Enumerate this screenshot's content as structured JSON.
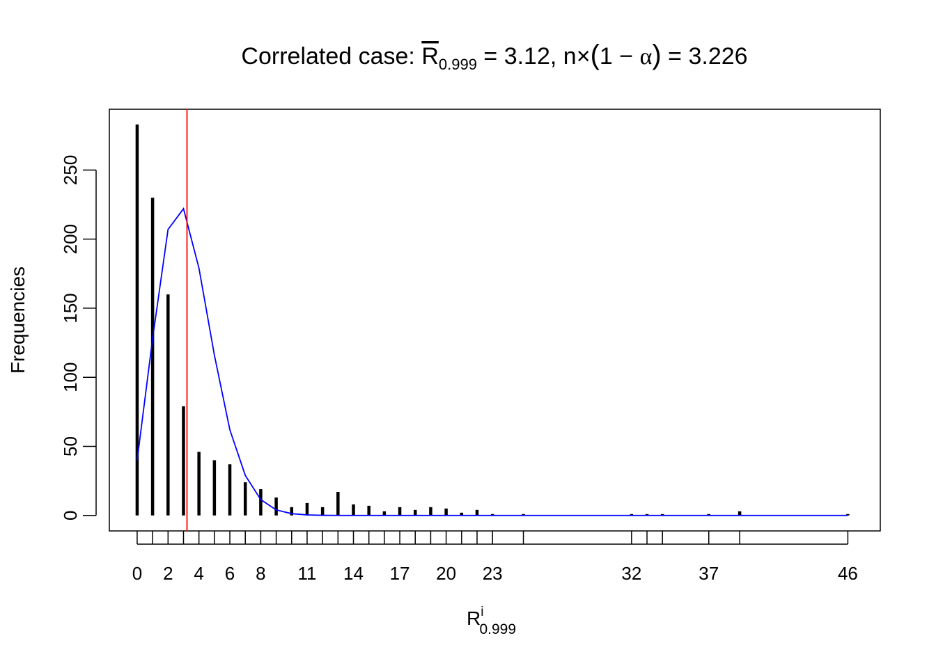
{
  "title": {
    "prefix": "Correlated case: ",
    "rbar_symbol": "R",
    "rbar_subscript": "0.999",
    "rbar_value": " = 3.12, ",
    "n_symbol": "n",
    "times_symbol": "×",
    "open_paren": "(",
    "one_minus": "1 − ",
    "alpha_symbol": "α",
    "close_paren": ")",
    "nalpha_value": " = 3.226"
  },
  "colors": {
    "bars": "#000000",
    "curve": "#0000ff",
    "vline": "#ff0000",
    "frame": "#000000"
  },
  "chart_data": {
    "type": "bar",
    "ylabel": "Frequencies",
    "xlabel": {
      "main": "R",
      "superscript": "i",
      "subscript": "0.999"
    },
    "xlim": [
      -1.8,
      48.1
    ],
    "ylim": [
      -11.2,
      294
    ],
    "y_ticks": [
      0,
      50,
      100,
      150,
      200,
      250
    ],
    "x_tick_marks": [
      0,
      1,
      2,
      3,
      4,
      5,
      6,
      7,
      8,
      9,
      10,
      11,
      12,
      13,
      14,
      15,
      16,
      17,
      18,
      19,
      20,
      21,
      22,
      23,
      25,
      32,
      33,
      34,
      37,
      39,
      46
    ],
    "x_tick_labels": [
      0,
      2,
      4,
      6,
      8,
      11,
      14,
      17,
      20,
      23,
      32,
      37,
      46
    ],
    "bars": {
      "x": [
        0,
        1,
        2,
        3,
        4,
        5,
        6,
        7,
        8,
        9,
        10,
        11,
        12,
        13,
        14,
        15,
        16,
        17,
        18,
        19,
        20,
        21,
        22,
        23,
        25,
        32,
        33,
        34,
        37,
        39,
        46
      ],
      "values": [
        283,
        230,
        160,
        79,
        46,
        40,
        37,
        24,
        19,
        13,
        6,
        9,
        6,
        17,
        8,
        7,
        3,
        6,
        4,
        6,
        5,
        2,
        4,
        1,
        1,
        1,
        1,
        1,
        1,
        3,
        1
      ]
    },
    "poisson_curve": {
      "x": [
        0,
        1,
        2,
        3,
        4,
        5,
        6,
        7,
        8,
        9,
        10,
        11,
        12,
        13,
        14,
        15,
        16,
        17,
        18,
        19,
        20,
        21,
        22,
        23,
        25,
        32,
        33,
        34,
        37,
        39,
        46
      ],
      "values": [
        40,
        128,
        207,
        222,
        179,
        116,
        62,
        29,
        11.5,
        4,
        1.3,
        0.4,
        0.1,
        0,
        0,
        0,
        0,
        0,
        0,
        0,
        0,
        0,
        0,
        0,
        0,
        0,
        0,
        0,
        0,
        0,
        0
      ]
    },
    "vline_x": 3.226,
    "grid": false,
    "legend": "none"
  }
}
